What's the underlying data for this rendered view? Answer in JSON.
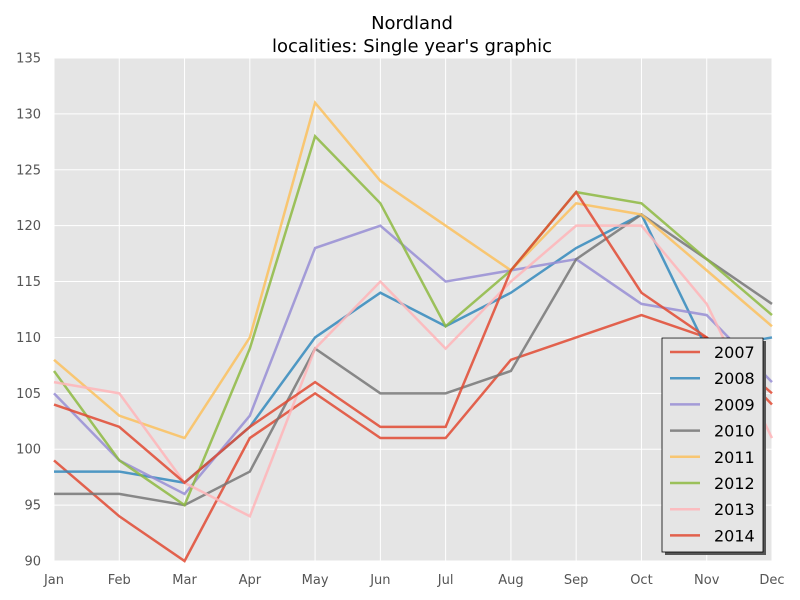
{
  "chart_data": {
    "type": "line",
    "title": "Nordland",
    "subtitle": "localities: Single year's graphic",
    "xlabel": "",
    "ylabel": "",
    "categories": [
      "Jan",
      "Feb",
      "Mar",
      "Apr",
      "May",
      "Jun",
      "Jul",
      "Aug",
      "Sep",
      "Oct",
      "Nov",
      "Dec"
    ],
    "ylim": [
      90,
      135
    ],
    "yticks": [
      90,
      95,
      100,
      105,
      110,
      115,
      120,
      125,
      130,
      135
    ],
    "grid": true,
    "legend_position": "bottom-right",
    "series": [
      {
        "name": "2007",
        "color": "#e24a33",
        "values": [
          99,
          94,
          90,
          101,
          105,
          101,
          101,
          108,
          110,
          112,
          110,
          104
        ]
      },
      {
        "name": "2008",
        "color": "#348abd",
        "values": [
          98,
          98,
          97,
          102,
          110,
          114,
          111,
          114,
          118,
          121,
          109,
          110
        ]
      },
      {
        "name": "2009",
        "color": "#988ed5",
        "values": [
          105,
          99,
          96,
          103,
          118,
          120,
          115,
          116,
          117,
          113,
          112,
          106
        ]
      },
      {
        "name": "2010",
        "color": "#777777",
        "values": [
          96,
          96,
          95,
          98,
          109,
          105,
          105,
          107,
          117,
          121,
          117,
          113
        ]
      },
      {
        "name": "2011",
        "color": "#fbc15e",
        "values": [
          108,
          103,
          101,
          110,
          131,
          124,
          120,
          116,
          122,
          121,
          116,
          111
        ]
      },
      {
        "name": "2012",
        "color": "#8eba42",
        "values": [
          107,
          99,
          95,
          109,
          128,
          122,
          111,
          116,
          123,
          122,
          117,
          112
        ]
      },
      {
        "name": "2013",
        "color": "#ffb5b8",
        "values": [
          106,
          105,
          97,
          94,
          109,
          115,
          109,
          115,
          120,
          120,
          113,
          101
        ]
      },
      {
        "name": "2014",
        "color": "#e24a33",
        "values": [
          104,
          102,
          97,
          102,
          106,
          102,
          102,
          116,
          123,
          114,
          110,
          105
        ]
      }
    ]
  },
  "colors": {
    "plot_background": "#e5e5e5",
    "grid": "#ffffff",
    "tick_label": "#555555"
  }
}
